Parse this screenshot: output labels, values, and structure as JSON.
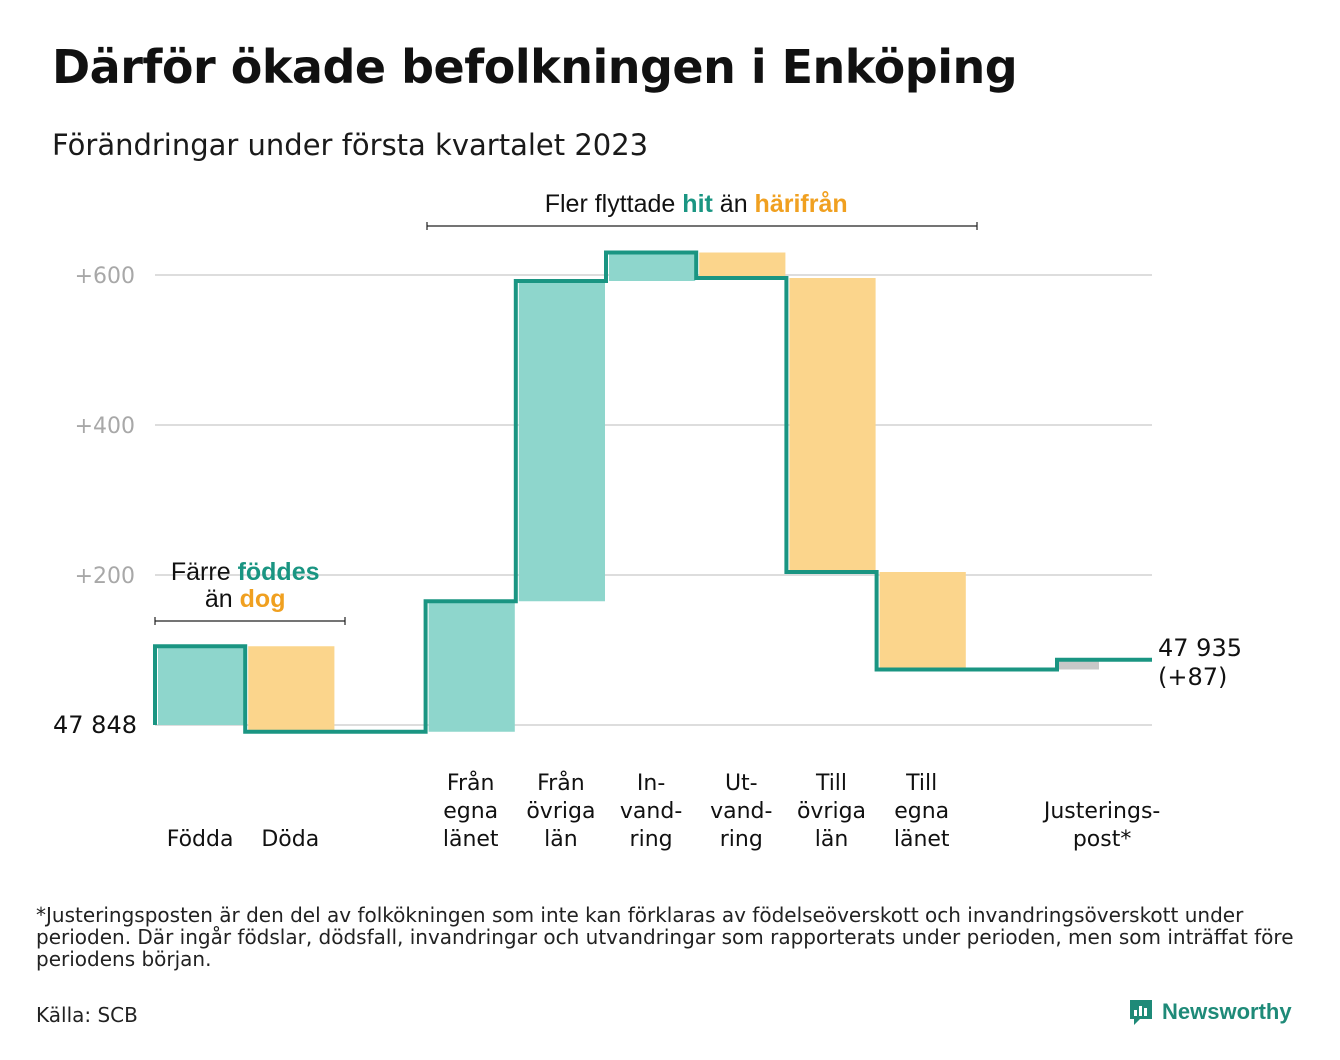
{
  "title": "Därför ökade befolkningen i Enköping",
  "subtitle": "Förändringar under första kvartalet 2023",
  "footnote": "*Justeringsposten är den del av folkökningen som inte kan förklaras av födelseöverskott och invandringsöverskott under perioden. Där ingår födslar, dödsfall, invandringar och utvandringar som rapporterats under perioden, men som inträffat före periodens början.",
  "source": "Källa: SCB",
  "brand": "Newsworthy",
  "colors": {
    "increase": "#8ed6cc",
    "decrease": "#fbd58c",
    "adjustment": "#c8c8c8",
    "line": "#1a9582",
    "accent_hit": "#1a9582",
    "accent_harifran": "#f0a020",
    "grid": "#dddddd",
    "tick": "#a8a8a8"
  },
  "chart_data": {
    "type": "waterfall",
    "start": {
      "label": "47 848",
      "value": 47848
    },
    "end": {
      "label_value": "47 935",
      "label_change": "(+87)",
      "value": 47935,
      "change": 87
    },
    "ylim": [
      -10,
      640
    ],
    "yticks": [
      {
        "value": 200,
        "label": "+200"
      },
      {
        "value": 400,
        "label": "+400"
      },
      {
        "value": 600,
        "label": "+600"
      }
    ],
    "grid": true,
    "steps": [
      {
        "id": "fodda",
        "label_lines": [
          "Födda"
        ],
        "change": 105,
        "kind": "increase"
      },
      {
        "id": "doda",
        "label_lines": [
          "Döda"
        ],
        "change": -114,
        "kind": "decrease"
      },
      {
        "id": "gap",
        "label_lines": [],
        "change": 0,
        "kind": "none"
      },
      {
        "id": "fran-egna",
        "label_lines": [
          "Från",
          "egna",
          "länet"
        ],
        "change": 174,
        "kind": "increase"
      },
      {
        "id": "fran-ovriga",
        "label_lines": [
          "Från",
          "övriga",
          "län"
        ],
        "change": 427,
        "kind": "increase"
      },
      {
        "id": "invandring",
        "label_lines": [
          "In-",
          "vand-",
          "ring"
        ],
        "change": 38,
        "kind": "increase"
      },
      {
        "id": "utvandring",
        "label_lines": [
          "Ut-",
          "vand-",
          "ring"
        ],
        "change": -34,
        "kind": "decrease"
      },
      {
        "id": "till-ovriga",
        "label_lines": [
          "Till",
          "övriga",
          "län"
        ],
        "change": -392,
        "kind": "decrease"
      },
      {
        "id": "till-egna",
        "label_lines": [
          "Till",
          "egna",
          "länet"
        ],
        "change": -130,
        "kind": "decrease"
      },
      {
        "id": "gap2",
        "label_lines": [],
        "change": 0,
        "kind": "none"
      },
      {
        "id": "justering",
        "label_lines": [
          "Justerings-",
          "post*"
        ],
        "change": 13,
        "kind": "adjustment"
      }
    ],
    "annotations": [
      {
        "id": "births",
        "parts": [
          {
            "line": 0,
            "text": "Färre ",
            "style": "plain"
          },
          {
            "line": 0,
            "text": "föddes",
            "style": "hit"
          },
          {
            "line": 1,
            "text": "än ",
            "style": "plain"
          },
          {
            "line": 1,
            "text": "dog",
            "style": "harifran"
          }
        ],
        "from_step": 0,
        "to_step": 1
      },
      {
        "id": "migration",
        "parts": [
          {
            "line": 0,
            "text": "Fler flyttade ",
            "style": "plain"
          },
          {
            "line": 0,
            "text": "hit",
            "style": "hit"
          },
          {
            "line": 0,
            "text": " än ",
            "style": "plain"
          },
          {
            "line": 0,
            "text": "härifrån",
            "style": "harifran"
          }
        ],
        "from_step": 3,
        "to_step": 8
      }
    ]
  }
}
